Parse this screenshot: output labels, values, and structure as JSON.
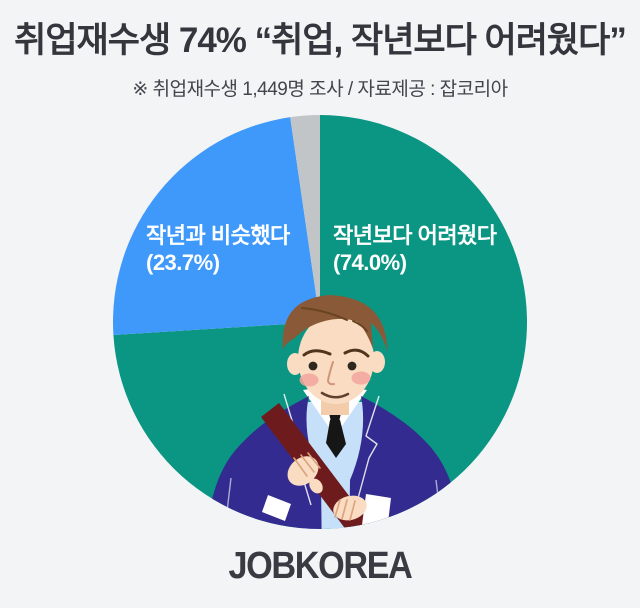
{
  "page": {
    "background_color": "#f3f4f6"
  },
  "header": {
    "title": "취업재수생 74% “취업, 작년보다 어려웠다”",
    "subtitle": "※ 취업재수생 1,449명 조사 / 자료제공 : 잡코리아"
  },
  "chart_data": {
    "type": "pie",
    "title": "취업재수생 74% “취업, 작년보다 어려웠다”",
    "source_note": "※ 취업재수생 1,449명 조사 / 자료제공 : 잡코리아",
    "unit": "%",
    "start_angle_deg": 0,
    "direction": "clockwise",
    "legend_position": "none",
    "labels_on_chart": true,
    "slices": [
      {
        "label": "작년보다 어려웠다",
        "value": 74.0,
        "color": "#0a9682"
      },
      {
        "label": "작년과 비슷했다",
        "value": 23.7,
        "color": "#3e99fa"
      },
      {
        "label": "",
        "value": 2.3,
        "color": "#c2c5c8"
      }
    ]
  },
  "pie_labels": {
    "harder": {
      "line1": "작년보다 어려웠다",
      "line2": "(74.0%)"
    },
    "similar": {
      "line1": "작년과 비슷했다",
      "line2": "(23.7%)"
    }
  },
  "footer": {
    "logo_text": "JOBKOREA"
  }
}
